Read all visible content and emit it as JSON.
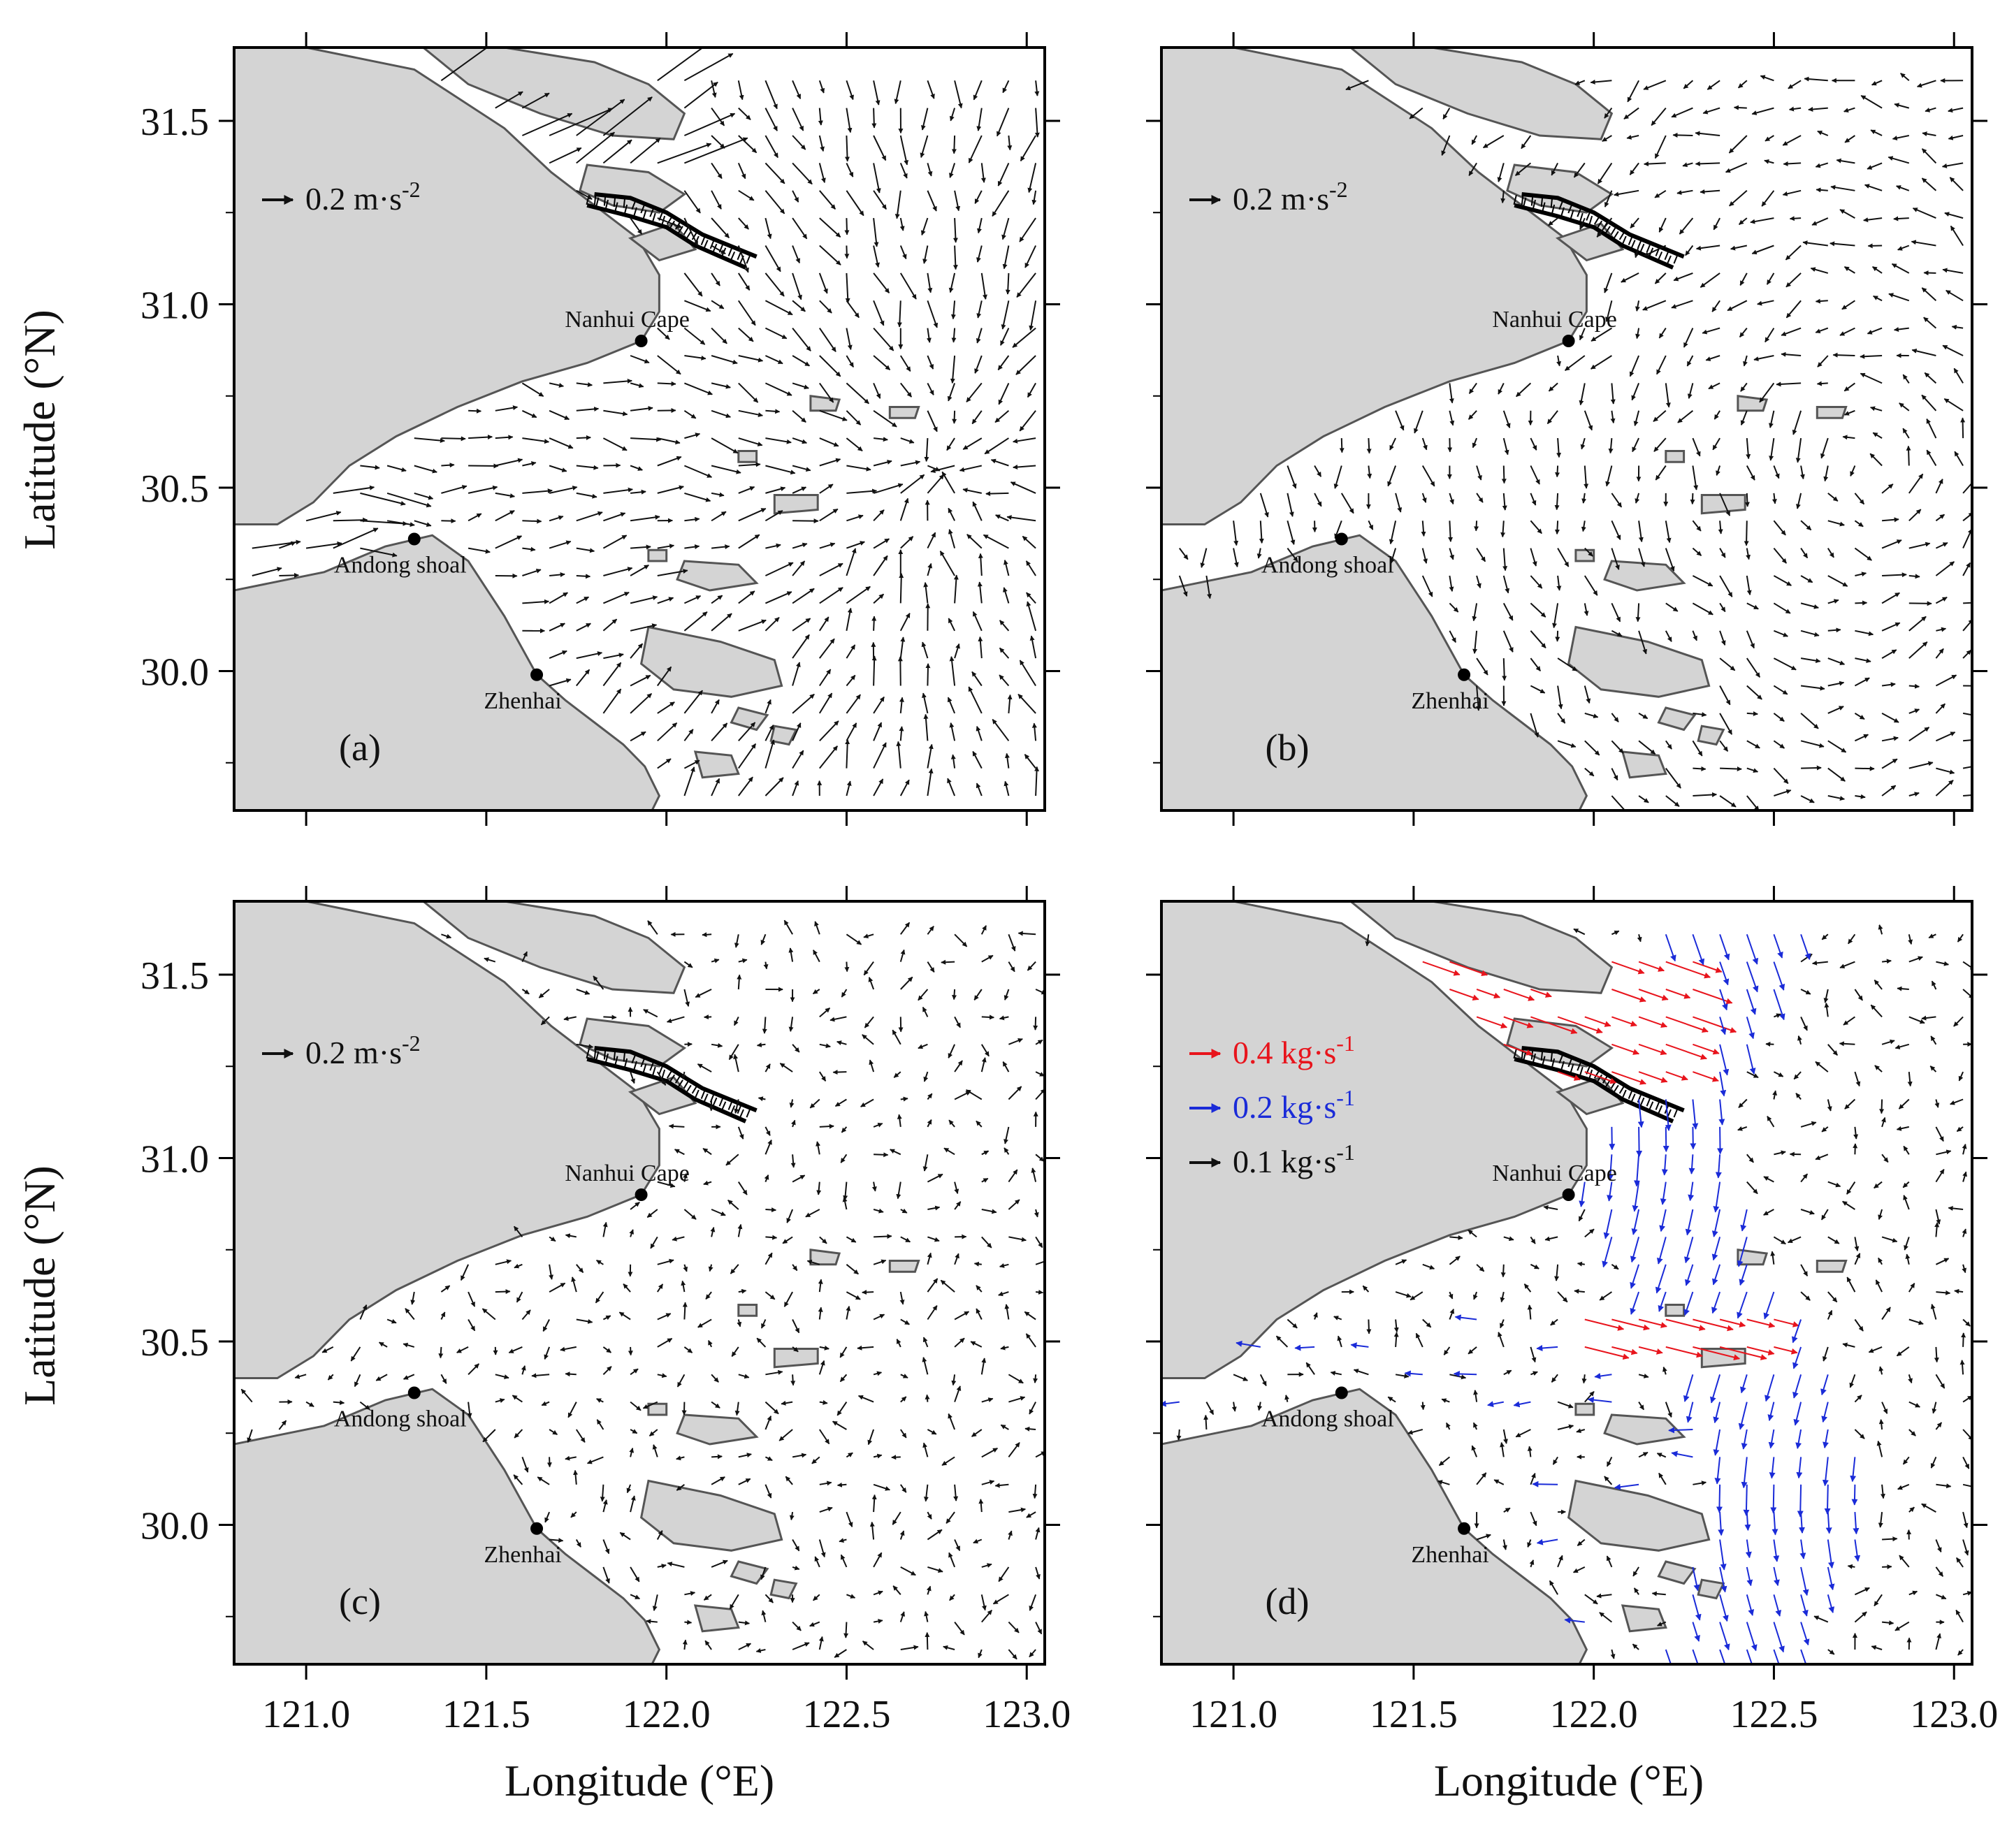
{
  "figure": {
    "x_axis_title": "Longitude (°E)",
    "y_axis_title": "Latitude (°N)",
    "x_ticks": [
      "121.0",
      "121.5",
      "122.0",
      "122.5",
      "123.0"
    ],
    "y_ticks": [
      "31.5",
      "31.0",
      "30.5",
      "30.0"
    ],
    "x_range": [
      120.8,
      123.05
    ],
    "y_range": [
      29.62,
      31.7
    ],
    "places": [
      {
        "label": "Nanhui Cape",
        "lon": 121.93,
        "lat": 30.9
      },
      {
        "label": "Andong shoal",
        "lon": 121.3,
        "lat": 30.36
      },
      {
        "label": "Zhenhai",
        "lon": 121.64,
        "lat": 29.99
      }
    ]
  },
  "panels": [
    {
      "letter": "(a)",
      "legend": [
        {
          "text": "0.2 m·s",
          "sup": "-2",
          "color": "#111111"
        }
      ]
    },
    {
      "letter": "(b)",
      "legend": [
        {
          "text": "0.2 m·s",
          "sup": "-2",
          "color": "#111111"
        }
      ]
    },
    {
      "letter": "(c)",
      "legend": [
        {
          "text": "0.2 m·s",
          "sup": "-2",
          "color": "#111111"
        }
      ]
    },
    {
      "letter": "(d)",
      "legend": [
        {
          "text": "0.4 kg·s",
          "sup": "-1",
          "color": "#e8141c"
        },
        {
          "text": "0.2 kg·s",
          "sup": "-1",
          "color": "#1a2bd8"
        },
        {
          "text": "0.1 kg·s",
          "sup": "-1",
          "color": "#111111"
        }
      ]
    }
  ],
  "colors": {
    "land": "#d4d4d4",
    "coast": "#555555",
    "vector": "#111111",
    "red": "#e8141c",
    "blue": "#1a2bd8"
  }
}
